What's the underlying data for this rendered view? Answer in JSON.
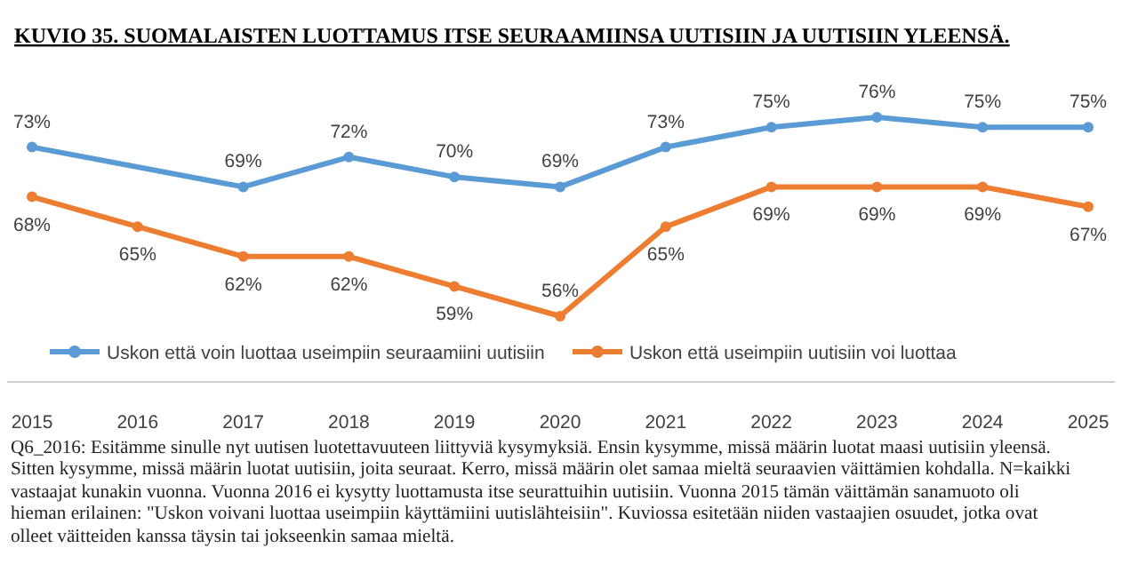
{
  "chart_data": {
    "type": "line",
    "title": "KUVIO 35.  SUOMALAISTEN LUOTTAMUS ITSE SEURAAMIINSA UUTISIIN JA UUTISIIN YLEENSÄ.",
    "categories": [
      "2015",
      "2016",
      "2017",
      "2018",
      "2019",
      "2020",
      "2021",
      "2022",
      "2023",
      "2024",
      "2025"
    ],
    "series": [
      {
        "name": "Uskon että voin luottaa useimpiin seuraamiini uutisiin",
        "color": "#5b9bd5",
        "values": [
          73,
          null,
          69,
          72,
          70,
          69,
          73,
          75,
          76,
          75,
          75
        ],
        "value_labels": [
          "73%",
          null,
          "69%",
          "72%",
          "70%",
          "69%",
          "73%",
          "75%",
          "76%",
          "75%",
          "75%"
        ]
      },
      {
        "name": "Uskon että useimpiin uutisiin voi luottaa",
        "color": "#ed7d31",
        "values": [
          68,
          65,
          62,
          62,
          59,
          56,
          65,
          69,
          69,
          69,
          67
        ],
        "value_labels": [
          "68%",
          "65%",
          "62%",
          "62%",
          "59%",
          "56%",
          "65%",
          "69%",
          "69%",
          "69%",
          "67%"
        ]
      }
    ],
    "marker": "circle",
    "legend": "bottom",
    "annotations": [
      "Q6_2016: Esitämme sinulle nyt uutisen luotettavuuteen liittyviä kysymyksiä. Ensin kysymme, missä määrin luotat maasi uutisiin yleensä. Sitten kysymme, missä määrin luotat uutisiin, joita seuraat. Kerro, missä määrin olet samaa mieltä seuraavien väittämien kohdalla. N=kaikki vastaajat kunakin vuonna. Vuonna 2016 ei kysytty luottamusta itse seurattuihin uutisiin. Vuonna 2015 tämän väittämän sanamuoto oli hieman erilainen: \"Uskon voivani luottaa useimpiin käyttämiini uutislähteisiin\". Kuviossa esitetään niiden vastaajien osuudet, jotka ovat olleet väitteiden kanssa täysin tai jokseenkin samaa mieltä."
    ]
  }
}
